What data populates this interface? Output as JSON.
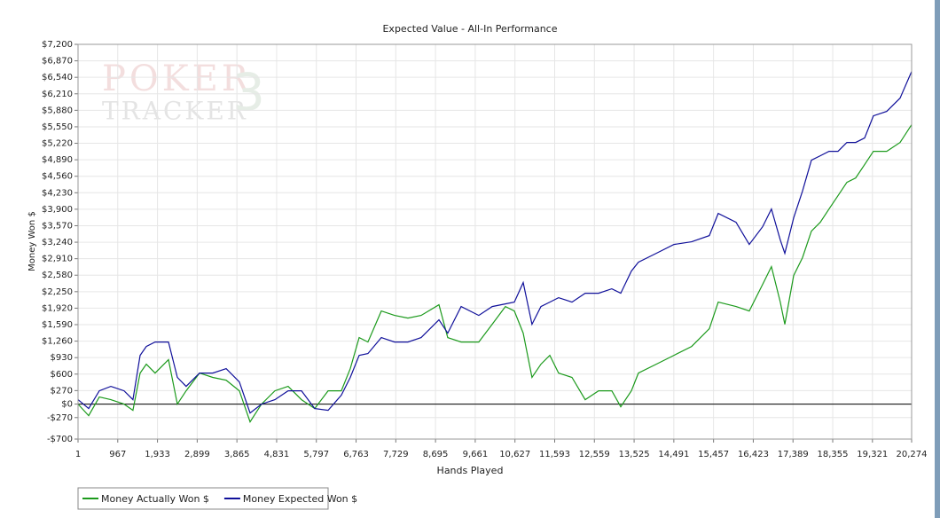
{
  "chart_data": {
    "type": "line",
    "title": "Expected Value - All-In Performance",
    "watermark": [
      "POKER",
      "TRACKER",
      "3"
    ],
    "xlabel": "Hands Played",
    "ylabel": "Money Won $",
    "xlim": [
      1,
      20274
    ],
    "ylim": [
      -700,
      7200
    ],
    "grid": true,
    "legend": "bottom-left",
    "zero_line": true,
    "xticks": [
      1,
      967,
      {
        "value": 1933,
        "label": "1,933"
      },
      {
        "value": 2899,
        "label": "2,899"
      },
      {
        "value": 3865,
        "label": "3,865"
      },
      {
        "value": 4831,
        "label": "4,831"
      },
      {
        "value": 5797,
        "label": "5,797"
      },
      {
        "value": 6763,
        "label": "6,763"
      },
      {
        "value": 7729,
        "label": "7,729"
      },
      {
        "value": 8695,
        "label": "8,695"
      },
      {
        "value": 9661,
        "label": "9,661"
      },
      {
        "value": 10627,
        "label": "10,627"
      },
      {
        "value": 11593,
        "label": "11,593"
      },
      {
        "value": 12559,
        "label": "12,559"
      },
      {
        "value": 13525,
        "label": "13,525"
      },
      {
        "value": 14491,
        "label": "14,491"
      },
      {
        "value": 15457,
        "label": "15,457"
      },
      {
        "value": 16423,
        "label": "16,423"
      },
      {
        "value": 17389,
        "label": "17,389"
      },
      {
        "value": 18355,
        "label": "18,355"
      },
      {
        "value": 19321,
        "label": "19,321"
      },
      {
        "value": 20274,
        "label": "20,274"
      }
    ],
    "yticks": [
      {
        "value": -700,
        "label": "-$700"
      },
      {
        "value": -270,
        "label": "-$270"
      },
      {
        "value": 0,
        "label": "$0"
      },
      {
        "value": 270,
        "label": "$270"
      },
      {
        "value": 600,
        "label": "$600"
      },
      {
        "value": 930,
        "label": "$930"
      },
      {
        "value": 1260,
        "label": "$1,260"
      },
      {
        "value": 1590,
        "label": "$1,590"
      },
      {
        "value": 1920,
        "label": "$1,920"
      },
      {
        "value": 2250,
        "label": "$2,250"
      },
      {
        "value": 2580,
        "label": "$2,580"
      },
      {
        "value": 2910,
        "label": "$2,910"
      },
      {
        "value": 3240,
        "label": "$3,240"
      },
      {
        "value": 3570,
        "label": "$3,570"
      },
      {
        "value": 3900,
        "label": "$3,900"
      },
      {
        "value": 4230,
        "label": "$4,230"
      },
      {
        "value": 4560,
        "label": "$4,560"
      },
      {
        "value": 4890,
        "label": "$4,890"
      },
      {
        "value": 5220,
        "label": "$5,220"
      },
      {
        "value": 5550,
        "label": "$5,550"
      },
      {
        "value": 5880,
        "label": "$5,880"
      },
      {
        "value": 6210,
        "label": "$6,210"
      },
      {
        "value": 6540,
        "label": "$6,540"
      },
      {
        "value": 6870,
        "label": "$6,870"
      },
      {
        "value": 7200,
        "label": "$7,200"
      }
    ],
    "x": [
      1,
      259,
      518,
      798,
      1121,
      1337,
      1510,
      1661,
      1876,
      2200,
      2416,
      2631,
      2955,
      3278,
      3602,
      3925,
      4184,
      4464,
      4788,
      5111,
      5435,
      5758,
      6082,
      6405,
      6621,
      6837,
      7052,
      7376,
      7699,
      8023,
      8346,
      8778,
      8993,
      9317,
      9748,
      10072,
      10395,
      10611,
      10827,
      11042,
      11258,
      11474,
      11689,
      12013,
      12336,
      12660,
      12983,
      13199,
      13458,
      13630,
      14062,
      14493,
      14924,
      15355,
      15571,
      16003,
      16326,
      16650,
      16865,
      17081,
      17189,
      17405,
      17620,
      17836,
      18052,
      18267,
      18483,
      18699,
      18914,
      19130,
      19345,
      19669,
      19993,
      20274
    ],
    "series": [
      {
        "name": "Money Actually Won $",
        "color": "#1c9a1c",
        "values": [
          0,
          -231,
          142,
          89,
          0,
          -124,
          621,
          799,
          621,
          888,
          0,
          266,
          621,
          533,
          479,
          266,
          -355,
          0,
          266,
          355,
          89,
          -89,
          266,
          266,
          710,
          1331,
          1243,
          1864,
          1775,
          1722,
          1775,
          1988,
          1331,
          1243,
          1243,
          1598,
          1953,
          1864,
          1420,
          533,
          799,
          976,
          621,
          533,
          89,
          266,
          266,
          -53,
          266,
          621,
          799,
          976,
          1154,
          1509,
          2041,
          1953,
          1864,
          2396,
          2751,
          2041,
          1598,
          2574,
          2929,
          3461,
          3639,
          3905,
          4171,
          4438,
          4526,
          4793,
          5059,
          5059,
          5236,
          5591
        ]
      },
      {
        "name": "Money Expected Won $",
        "color": "#10109a",
        "values": [
          89,
          -89,
          266,
          355,
          266,
          89,
          976,
          1154,
          1243,
          1243,
          533,
          355,
          621,
          621,
          710,
          444,
          -178,
          0,
          89,
          266,
          266,
          -89,
          -124,
          178,
          533,
          976,
          1012,
          1331,
          1243,
          1243,
          1331,
          1686,
          1420,
          1953,
          1775,
          1953,
          2006,
          2041,
          2432,
          1598,
          1953,
          2041,
          2130,
          2041,
          2219,
          2219,
          2308,
          2219,
          2663,
          2840,
          3018,
          3195,
          3248,
          3373,
          3816,
          3639,
          3195,
          3550,
          3905,
          3284,
          3018,
          3728,
          4260,
          4881,
          4970,
          5059,
          5059,
          5236,
          5236,
          5325,
          5769,
          5858,
          6124,
          6656
        ]
      }
    ]
  }
}
